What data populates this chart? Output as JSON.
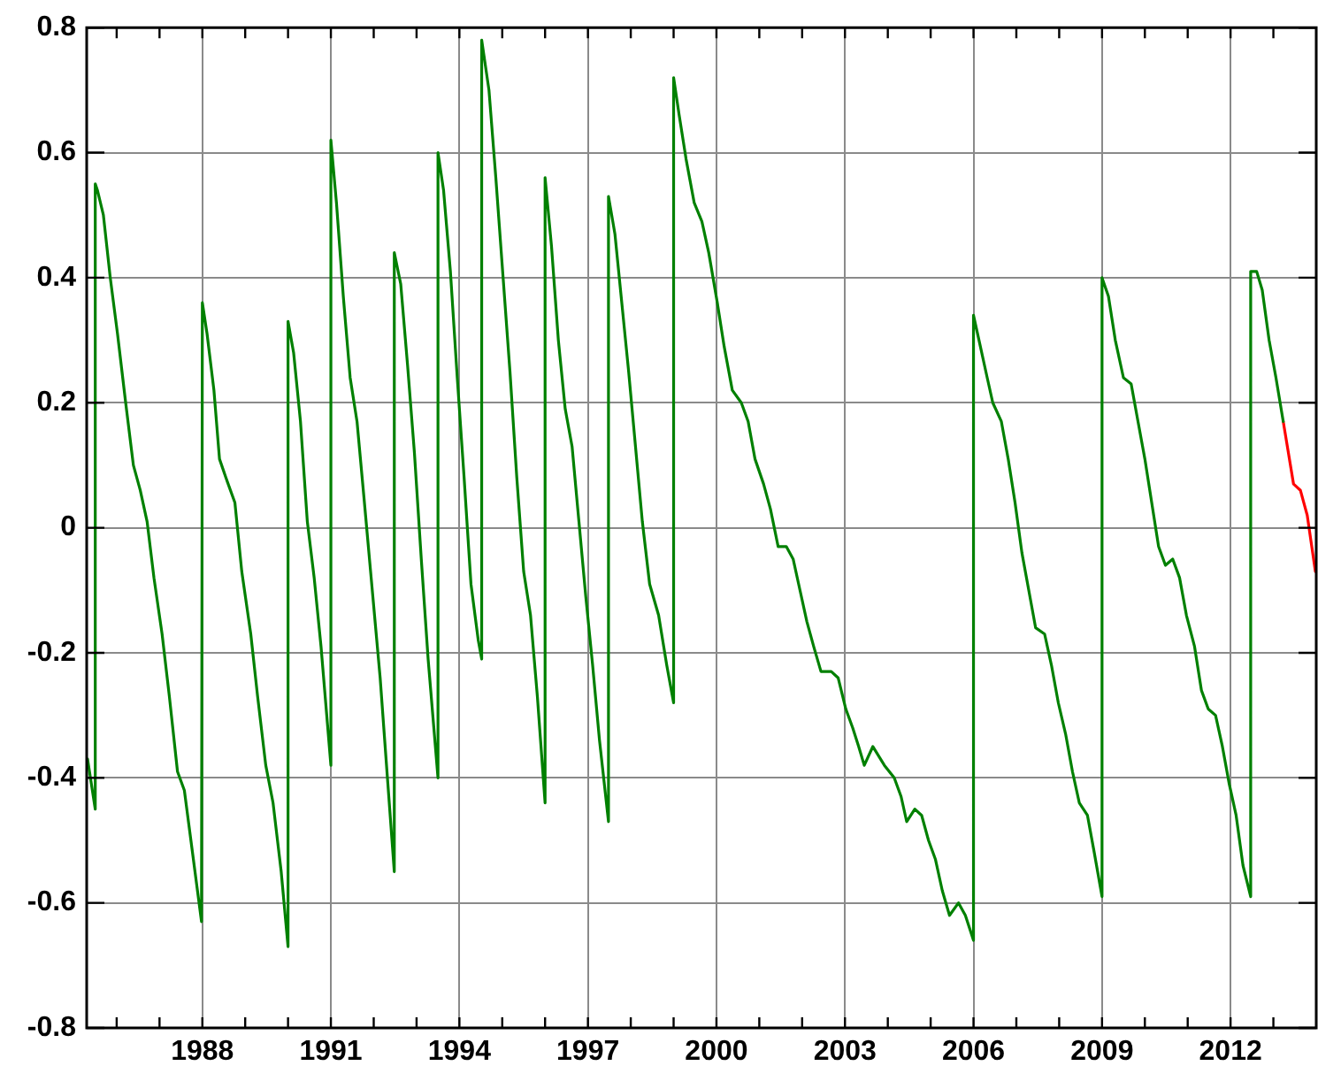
{
  "chart_data": {
    "type": "line",
    "xlim": [
      1985.3,
      2014.0
    ],
    "ylim": [
      -0.8,
      0.8
    ],
    "xticks": [
      {
        "value": 1986,
        "label": null
      },
      {
        "value": 1987,
        "label": null
      },
      1988,
      {
        "value": 1989,
        "label": null
      },
      {
        "value": 1990,
        "label": null
      },
      1991,
      {
        "value": 1992,
        "label": null
      },
      {
        "value": 1993,
        "label": null
      },
      1994,
      {
        "value": 1995,
        "label": null
      },
      {
        "value": 1996,
        "label": null
      },
      1997,
      {
        "value": 1998,
        "label": null
      },
      {
        "value": 1999,
        "label": null
      },
      2000,
      {
        "value": 2001,
        "label": null
      },
      {
        "value": 2002,
        "label": null
      },
      2003,
      {
        "value": 2004,
        "label": null
      },
      {
        "value": 2005,
        "label": null
      },
      2006,
      {
        "value": 2007,
        "label": null
      },
      {
        "value": 2008,
        "label": null
      },
      2009,
      {
        "value": 2010,
        "label": null
      },
      {
        "value": 2011,
        "label": null
      },
      2012,
      {
        "value": 2013,
        "label": null
      }
    ],
    "yticks": [
      -0.8,
      -0.6,
      -0.4,
      -0.2,
      0,
      0.2,
      0.4,
      0.6,
      0.8
    ],
    "grid": true,
    "legend": false,
    "marker": "none",
    "line_style": "solid",
    "series": [
      {
        "color": "#008000",
        "x": [
          1985.32,
          1985.5,
          1985.5,
          1985.55,
          1985.69,
          1985.85,
          1986.02,
          1986.21,
          1986.39,
          1986.55,
          1986.71,
          1986.87,
          1987.06,
          1987.23,
          1987.42,
          1987.58,
          1987.79,
          1987.98,
          1988.0,
          1988.11,
          1988.27,
          1988.4,
          1988.55,
          1988.76,
          1988.92,
          1989.13,
          1989.29,
          1989.48,
          1989.65,
          1989.84,
          1990.0,
          1990.0,
          1990.13,
          1990.29,
          1990.45,
          1990.61,
          1990.77,
          1991.0,
          1991.0,
          1991.13,
          1991.29,
          1991.45,
          1991.61,
          1991.77,
          1991.94,
          1992.15,
          1992.32,
          1992.48,
          1992.48,
          1992.63,
          1992.79,
          1992.95,
          1993.11,
          1993.27,
          1993.5,
          1993.5,
          1993.63,
          1993.79,
          1993.95,
          1994.11,
          1994.27,
          1994.44,
          1994.52,
          1994.52,
          1994.69,
          1994.85,
          1995.02,
          1995.18,
          1995.34,
          1995.5,
          1995.66,
          1995.82,
          1996.0,
          1996.0,
          1996.15,
          1996.31,
          1996.47,
          1996.63,
          1996.79,
          1996.95,
          1997.11,
          1997.27,
          1997.48,
          1997.48,
          1997.63,
          1997.79,
          1997.95,
          1998.11,
          1998.27,
          1998.44,
          1998.65,
          1998.84,
          1999.0,
          1999.0,
          1999.13,
          1999.29,
          1999.48,
          1999.66,
          1999.82,
          2000.02,
          2000.18,
          2000.37,
          2000.58,
          2000.74,
          2000.9,
          2001.1,
          2001.26,
          2001.44,
          2001.63,
          2001.79,
          2001.95,
          2002.11,
          2002.27,
          2002.44,
          2002.68,
          2002.84,
          2003.02,
          2003.18,
          2003.32,
          2003.45,
          2003.65,
          2003.92,
          2004.15,
          2004.31,
          2004.44,
          2004.63,
          2004.79,
          2004.95,
          2005.11,
          2005.27,
          2005.44,
          2005.65,
          2005.81,
          2006.0,
          2006.0,
          2006.16,
          2006.32,
          2006.45,
          2006.65,
          2006.81,
          2006.97,
          2007.13,
          2007.29,
          2007.45,
          2007.66,
          2007.82,
          2007.98,
          2008.15,
          2008.31,
          2008.47,
          2008.66,
          2008.82,
          2009.0,
          2009.0,
          2009.15,
          2009.31,
          2009.5,
          2009.68,
          2009.84,
          2010.0,
          2010.16,
          2010.32,
          2010.48,
          2010.65,
          2010.81,
          2010.97,
          2011.16,
          2011.32,
          2011.48,
          2011.65,
          2011.81,
          2011.97,
          2012.13,
          2012.29,
          2012.47,
          2012.47,
          2012.61,
          2012.74,
          2012.9,
          2013.06,
          2013.23
        ],
        "values": [
          -0.37,
          -0.45,
          0.55,
          0.54,
          0.5,
          0.4,
          0.31,
          0.2,
          0.1,
          0.06,
          0.01,
          -0.08,
          -0.17,
          -0.27,
          -0.39,
          -0.42,
          -0.53,
          -0.63,
          0.36,
          0.31,
          0.22,
          0.11,
          0.08,
          0.04,
          -0.07,
          -0.17,
          -0.27,
          -0.38,
          -0.44,
          -0.55,
          -0.67,
          0.33,
          0.28,
          0.17,
          0.01,
          -0.08,
          -0.19,
          -0.38,
          0.62,
          0.52,
          0.37,
          0.24,
          0.17,
          0.05,
          -0.08,
          -0.24,
          -0.4,
          -0.55,
          0.44,
          0.39,
          0.26,
          0.12,
          -0.05,
          -0.21,
          -0.4,
          0.6,
          0.54,
          0.41,
          0.24,
          0.08,
          -0.09,
          -0.18,
          -0.21,
          0.78,
          0.7,
          0.56,
          0.4,
          0.25,
          0.08,
          -0.07,
          -0.14,
          -0.27,
          -0.44,
          0.56,
          0.45,
          0.3,
          0.19,
          0.13,
          0.01,
          -0.11,
          -0.22,
          -0.34,
          -0.47,
          0.53,
          0.47,
          0.36,
          0.25,
          0.13,
          0.01,
          -0.09,
          -0.14,
          -0.22,
          -0.28,
          0.72,
          0.66,
          0.59,
          0.52,
          0.49,
          0.44,
          0.36,
          0.29,
          0.22,
          0.2,
          0.17,
          0.11,
          0.07,
          0.03,
          -0.03,
          -0.03,
          -0.05,
          -0.1,
          -0.15,
          -0.19,
          -0.23,
          -0.23,
          -0.24,
          -0.29,
          -0.32,
          -0.35,
          -0.38,
          -0.35,
          -0.38,
          -0.4,
          -0.43,
          -0.47,
          -0.45,
          -0.46,
          -0.5,
          -0.53,
          -0.58,
          -0.62,
          -0.6,
          -0.62,
          -0.66,
          0.34,
          0.29,
          0.24,
          0.2,
          0.17,
          0.11,
          0.04,
          -0.04,
          -0.1,
          -0.16,
          -0.17,
          -0.22,
          -0.28,
          -0.33,
          -0.39,
          -0.44,
          -0.46,
          -0.52,
          -0.59,
          0.4,
          0.37,
          0.3,
          0.24,
          0.23,
          0.17,
          0.11,
          0.04,
          -0.03,
          -0.06,
          -0.05,
          -0.08,
          -0.14,
          -0.19,
          -0.26,
          -0.29,
          -0.3,
          -0.35,
          -0.41,
          -0.46,
          -0.54,
          -0.59,
          0.41,
          0.41,
          0.38,
          0.3,
          0.24,
          0.17
        ]
      },
      {
        "color": "#ff0000",
        "x": [
          2013.23,
          2013.47,
          2013.63,
          2013.79,
          2013.98
        ],
        "values": [
          0.17,
          0.07,
          0.06,
          0.02,
          -0.07
        ]
      }
    ]
  }
}
